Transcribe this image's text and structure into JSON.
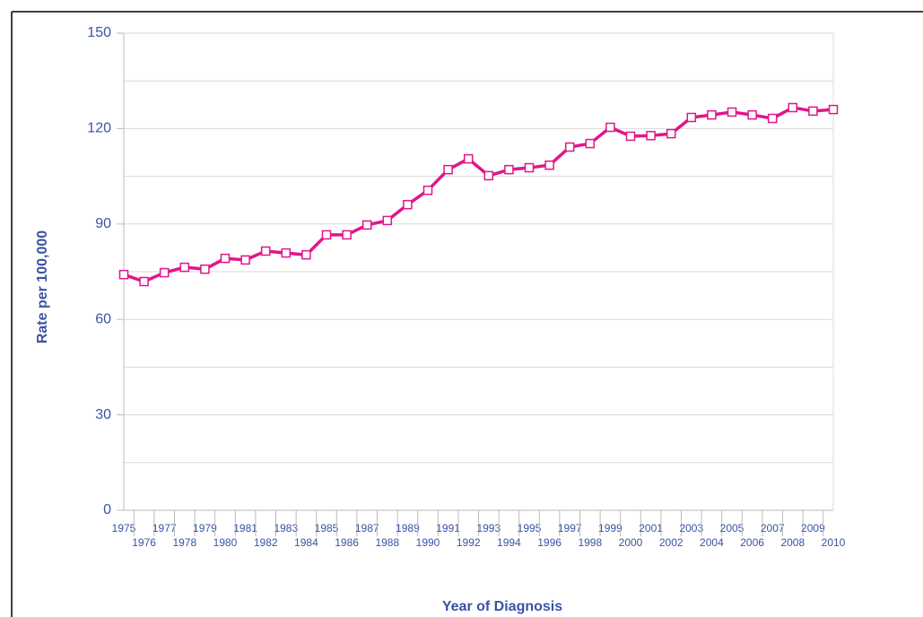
{
  "chart_data": {
    "type": "line",
    "x_label": "Year of Diagnosis",
    "y_label": "Rate per 100,000",
    "categories": [
      "1975",
      "1976",
      "1977",
      "1978",
      "1979",
      "1980",
      "1981",
      "1982",
      "1983",
      "1984",
      "1985",
      "1986",
      "1987",
      "1988",
      "1989",
      "1990",
      "1991",
      "1992",
      "1993",
      "1994",
      "1995",
      "1996",
      "1997",
      "1998",
      "1999",
      "2000",
      "2001",
      "2002",
      "2003",
      "2004",
      "2005",
      "2006",
      "2007",
      "2008",
      "2009",
      "2010"
    ],
    "series": [
      {
        "color": "#e0168a",
        "values": [
          74.1,
          71.9,
          74.7,
          76.4,
          75.8,
          79.2,
          78.7,
          81.5,
          80.9,
          80.3,
          86.6,
          86.6,
          89.7,
          91.1,
          96.1,
          100.6,
          107.1,
          110.5,
          105.2,
          107.1,
          107.7,
          108.5,
          114.2,
          115.3,
          120.4,
          117.6,
          117.8,
          118.4,
          123.5,
          124.3,
          125.2,
          124.3,
          123.2,
          126.6,
          125.5,
          126.0
        ]
      }
    ],
    "ylim": [
      0,
      150
    ],
    "yticks": [
      0,
      30,
      60,
      90,
      120,
      150
    ],
    "minor_yticks": [
      15,
      45,
      75,
      105,
      135
    ],
    "grid": true
  }
}
